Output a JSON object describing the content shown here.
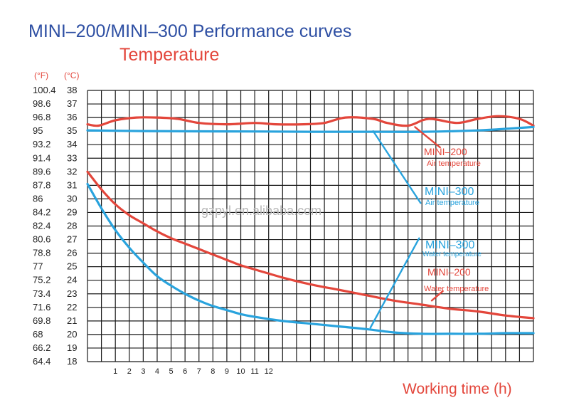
{
  "chart_data": {
    "type": "line",
    "title": "MINI–200/MINI–300 Performance curves",
    "subtitle": "Temperature",
    "y_units": {
      "fahrenheit": "(°F)",
      "celsius": "(°C)"
    },
    "ylim": [
      18,
      38
    ],
    "y_ticks_c": [
      "38",
      "37",
      "36",
      "35",
      "34",
      "33",
      "32",
      "31",
      "30",
      "29",
      "28",
      "27",
      "26",
      "25",
      "24",
      "23",
      "22",
      "21",
      "20",
      "19",
      "18"
    ],
    "y_ticks_f": [
      "100.4",
      "98.6",
      "96.8",
      "95",
      "93.2",
      "91.4",
      "89.6",
      "87.8",
      "86",
      "84.2",
      "82.4",
      "80.6",
      "78.8",
      "77",
      "75.2",
      "73.4",
      "71.6",
      "69.8",
      "68",
      "66.2",
      "64.4"
    ],
    "x_ticks": [
      "1",
      "2",
      "3",
      "4",
      "5",
      "6",
      "7",
      "8",
      "9",
      "10",
      "11",
      "12"
    ],
    "xlabel": "Working time (h)",
    "series": [
      {
        "id": "air200",
        "name": "MINI-200 Air temperature",
        "color": "#e3463b",
        "x": [
          0,
          0.8,
          2,
          3.5,
          5,
          6.5,
          8,
          10,
          12,
          13.5,
          15.5,
          17,
          18.5,
          20.5,
          21.5,
          23,
          24.5,
          26.5,
          28,
          29.5,
          31,
          32
        ],
        "y": [
          35.5,
          35.4,
          35.8,
          36,
          36,
          35.9,
          35.6,
          35.5,
          35.6,
          35.5,
          35.5,
          35.6,
          36,
          35.9,
          35.6,
          35.4,
          35.9,
          35.6,
          35.9,
          36.1,
          35.9,
          35.4
        ]
      },
      {
        "id": "air300",
        "name": "MINI-300 Air temperature",
        "color": "#29a3dd",
        "x": [
          0,
          4,
          8,
          12,
          16,
          20,
          24,
          28,
          30.5,
          32
        ],
        "y": [
          35.05,
          35.0,
          34.98,
          34.97,
          34.95,
          34.95,
          34.95,
          35.05,
          35.2,
          35.3
        ]
      },
      {
        "id": "water200",
        "name": "MINI-200 Water temperature",
        "color": "#e3463b",
        "x": [
          0,
          1,
          2,
          3,
          4,
          5,
          6,
          7,
          8,
          9,
          10,
          11,
          12,
          14,
          16,
          18,
          20,
          22,
          24,
          26,
          28,
          30,
          32
        ],
        "y": [
          32,
          30.7,
          29.6,
          28.8,
          28.2,
          27.6,
          27.1,
          26.7,
          26.3,
          25.9,
          25.5,
          25.1,
          24.8,
          24.2,
          23.7,
          23.3,
          22.9,
          22.5,
          22.2,
          21.9,
          21.7,
          21.4,
          21.2
        ]
      },
      {
        "id": "water300",
        "name": "MINI-300 Water temperature",
        "color": "#29a3dd",
        "x": [
          0,
          1,
          2,
          3,
          4,
          5,
          6,
          7,
          8,
          9,
          10,
          11,
          12,
          14,
          16,
          18,
          20,
          22,
          24,
          26,
          28,
          30,
          32
        ],
        "y": [
          31.1,
          29.3,
          27.7,
          26.4,
          25.3,
          24.3,
          23.6,
          23.0,
          22.5,
          22.1,
          21.8,
          21.5,
          21.3,
          21.0,
          20.8,
          20.6,
          20.4,
          20.15,
          20.05,
          20.05,
          20.05,
          20.1,
          20.1
        ]
      }
    ],
    "annotations": [
      {
        "id": "a1",
        "model": "MINI–200",
        "desc": "Air temperature",
        "color": "#e3463b",
        "leader": {
          "from": [
            23.5,
            35.3
          ],
          "to": [
            25.3,
            33.8
          ]
        }
      },
      {
        "id": "a2",
        "model": "MINI–300",
        "desc": "Air temperature",
        "color": "#29a3dd",
        "leader": {
          "from": [
            20.5,
            35.0
          ],
          "to": [
            23.9,
            29.7
          ]
        }
      },
      {
        "id": "a3",
        "model": "MINI–300",
        "desc": "Water temperature",
        "color": "#29a3dd",
        "leader": {
          "from": [
            20.3,
            20.5
          ],
          "to": [
            23.8,
            27.1
          ]
        }
      },
      {
        "id": "a4",
        "model": "MINI–200",
        "desc": "Water temperature",
        "color": "#e3463b",
        "leader": {
          "from": [
            24.7,
            22.5
          ],
          "to": [
            25.5,
            23.2
          ]
        }
      }
    ],
    "watermark": "gzpyl.en.alibaba.com"
  }
}
